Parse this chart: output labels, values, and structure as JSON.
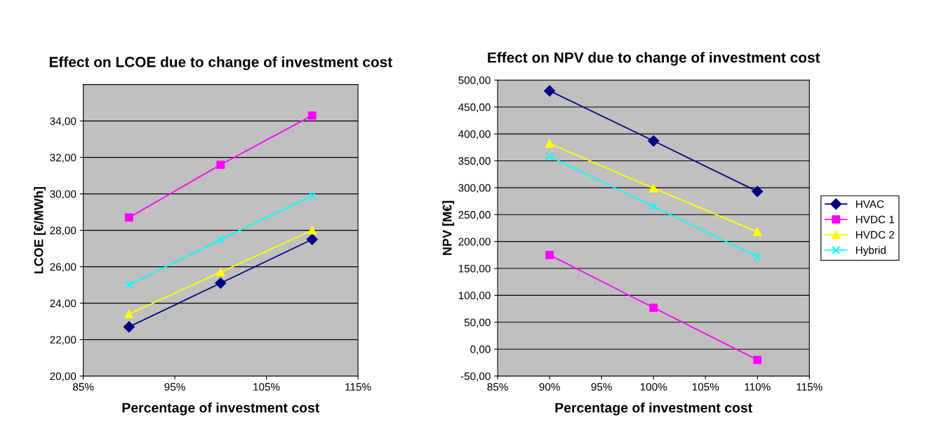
{
  "chart_data": [
    {
      "type": "line",
      "title": "Effect on LCOE due to change of investment cost",
      "xlabel": "Percentage of investment cost",
      "ylabel": "LCOE [€/MWh]",
      "x": [
        90,
        100,
        110
      ],
      "series": [
        {
          "color": "#000080",
          "marker": "diamond",
          "values": [
            22.7,
            25.1,
            27.5
          ]
        },
        {
          "color": "#ff00ff",
          "marker": "square",
          "values": [
            28.7,
            31.6,
            34.3
          ]
        },
        {
          "color": "#ffff00",
          "marker": "triangle",
          "values": [
            23.4,
            25.7,
            28.0
          ]
        },
        {
          "color": "#00ffff",
          "marker": "cross",
          "values": [
            25.0,
            27.5,
            29.9
          ]
        }
      ],
      "xlim": [
        85,
        115
      ],
      "xticks": [
        {
          "value": 85,
          "label": "85%"
        },
        {
          "value": 95,
          "label": "95%"
        },
        {
          "value": 105,
          "label": "105%"
        },
        {
          "value": 115,
          "label": "115%"
        }
      ],
      "ylim": [
        20,
        36
      ],
      "yticks": [
        {
          "value": 20,
          "label": "20,00"
        },
        {
          "value": 22,
          "label": "22,00"
        },
        {
          "value": 24,
          "label": "24,00"
        },
        {
          "value": 26,
          "label": "26,00"
        },
        {
          "value": 28,
          "label": "28,00"
        },
        {
          "value": 30,
          "label": "30,00"
        },
        {
          "value": 32,
          "label": "32,00"
        },
        {
          "value": 34,
          "label": "34,00"
        }
      ],
      "grid": "y",
      "legend": false
    },
    {
      "type": "line",
      "title": "Effect on NPV due to change of investment cost",
      "xlabel": "Percentage of investment cost",
      "ylabel": "NPV [M€]",
      "x": [
        90,
        100,
        110
      ],
      "series": [
        {
          "name": "HVAC",
          "color": "#000080",
          "marker": "diamond",
          "values": [
            480,
            387,
            293
          ]
        },
        {
          "name": "HVDC 1",
          "color": "#ff00ff",
          "marker": "square",
          "values": [
            175,
            77,
            -20
          ]
        },
        {
          "name": "HVDC 2",
          "color": "#ffff00",
          "marker": "triangle",
          "values": [
            382,
            299,
            218
          ]
        },
        {
          "name": "Hybrid",
          "color": "#00ffff",
          "marker": "cross",
          "values": [
            358,
            265,
            172
          ]
        }
      ],
      "xlim": [
        85,
        115
      ],
      "xticks": [
        {
          "value": 85,
          "label": "85%"
        },
        {
          "value": 90,
          "label": "90%"
        },
        {
          "value": 95,
          "label": "95%"
        },
        {
          "value": 100,
          "label": "100%"
        },
        {
          "value": 105,
          "label": "105%"
        },
        {
          "value": 110,
          "label": "110%"
        },
        {
          "value": 115,
          "label": "115%"
        }
      ],
      "ylim": [
        -50,
        500
      ],
      "yticks": [
        {
          "value": -50,
          "label": "-50,00"
        },
        {
          "value": 0,
          "label": "0,00"
        },
        {
          "value": 50,
          "label": "50,00"
        },
        {
          "value": 100,
          "label": "100,00"
        },
        {
          "value": 150,
          "label": "150,00"
        },
        {
          "value": 200,
          "label": "200,00"
        },
        {
          "value": 250,
          "label": "250,00"
        },
        {
          "value": 300,
          "label": "300,00"
        },
        {
          "value": 350,
          "label": "350,00"
        },
        {
          "value": 400,
          "label": "400,00"
        },
        {
          "value": 450,
          "label": "450,00"
        },
        {
          "value": 500,
          "label": "500,00"
        }
      ],
      "grid": "y",
      "legend": "right"
    }
  ]
}
